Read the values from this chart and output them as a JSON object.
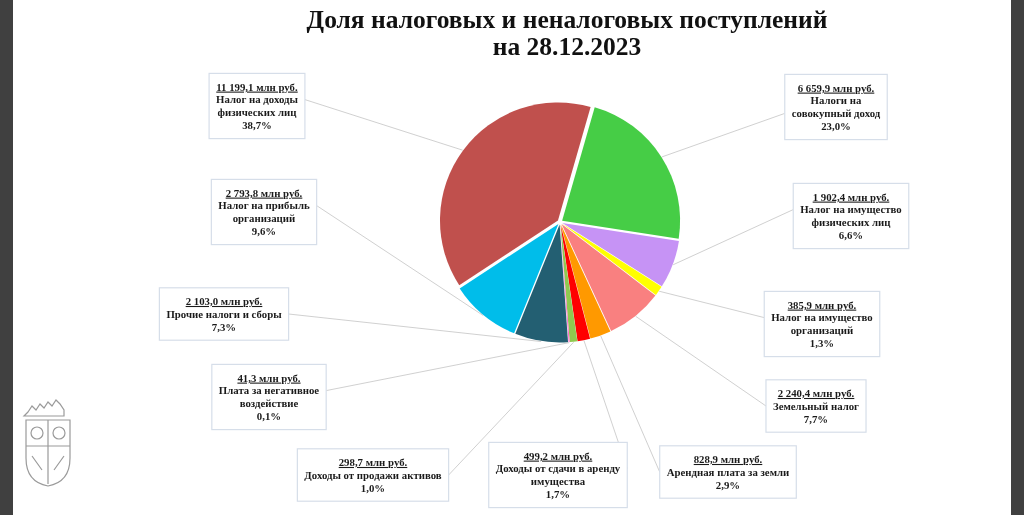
{
  "chart_data": {
    "type": "pie",
    "title": "Доля налоговых и неналоговых поступлений на 28.12.2023",
    "categories": [
      "Налоги на совокупный доход",
      "Налог на имущество физических лиц",
      "Налог на имущество организаций",
      "Земельный налог",
      "Арендная плата за земли",
      "Доходы от сдачи в аренду имущества",
      "Доходы от продажи активов",
      "Плата за негативное воздействие",
      "Прочие налоги и сборы",
      "Налог на прибыль организаций",
      "Налог на доходы физических лиц"
    ],
    "values": [
      6659.9,
      1902.4,
      385.9,
      2240.4,
      828.9,
      499.2,
      298.7,
      41.3,
      2103.0,
      2793.8,
      11199.1
    ],
    "colors": [
      "#46cd46",
      "#c693f5",
      "#ffff00",
      "#f98080",
      "#ff9900",
      "#ff0000",
      "#8fc94f",
      "#ff66cc",
      "#235f72",
      "#00bdea",
      "#c0504d"
    ],
    "value_labels": [
      "6 659,9 млн руб.",
      "1 902,4 млн руб.",
      "385,9 млн руб.",
      "2 240,4 млн руб.",
      "828,9 млн руб.",
      "499,2 млн руб.",
      "298,7 млн руб.",
      "41,3 млн руб.",
      "2 103,0 млн руб.",
      "2 793,8 млн руб.",
      "11 199,1 млн руб."
    ],
    "annotations": [
      "23,0%",
      "6,6%",
      "1,3%",
      "7,7%",
      "2,9%",
      "1,7%",
      "1,0%",
      "0,1%",
      "7,3%",
      "9,6%",
      "38,7%"
    ]
  }
}
